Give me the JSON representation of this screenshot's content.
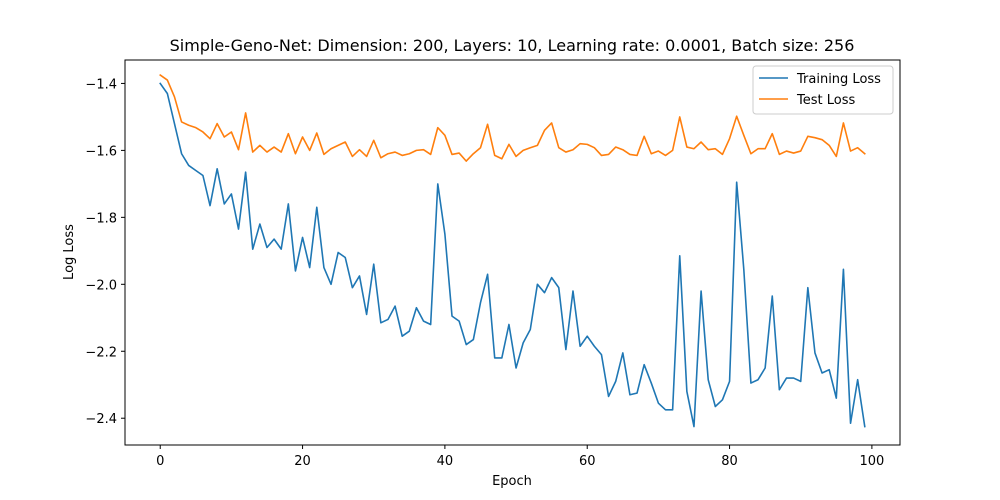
{
  "chart_data": {
    "type": "line",
    "title": "Simple-Geno-Net: Dimension: 200, Layers: 10, Learning rate: 0.0001, Batch size: 256",
    "xlabel": "Epoch",
    "ylabel": "Log Loss",
    "xlim": [
      -4.95,
      103.95
    ],
    "ylim": [
      -2.48,
      -1.33
    ],
    "xticks": [
      0,
      20,
      40,
      60,
      80,
      100
    ],
    "yticks": [
      -2.4,
      -2.2,
      -2.0,
      -1.8,
      -1.6,
      -1.4
    ],
    "xtick_labels": [
      "0",
      "20",
      "40",
      "60",
      "80",
      "100"
    ],
    "ytick_labels": [
      "−2.4",
      "−2.2",
      "−2.0",
      "−1.8",
      "−1.6",
      "−1.4"
    ],
    "grid": false,
    "legend_position": "top-right",
    "x": [
      0,
      1,
      2,
      3,
      4,
      5,
      6,
      7,
      8,
      9,
      10,
      11,
      12,
      13,
      14,
      15,
      16,
      17,
      18,
      19,
      20,
      21,
      22,
      23,
      24,
      25,
      26,
      27,
      28,
      29,
      30,
      31,
      32,
      33,
      34,
      35,
      36,
      37,
      38,
      39,
      40,
      41,
      42,
      43,
      44,
      45,
      46,
      47,
      48,
      49,
      50,
      51,
      52,
      53,
      54,
      55,
      56,
      57,
      58,
      59,
      60,
      61,
      62,
      63,
      64,
      65,
      66,
      67,
      68,
      69,
      70,
      71,
      72,
      73,
      74,
      75,
      76,
      77,
      78,
      79,
      80,
      81,
      82,
      83,
      84,
      85,
      86,
      87,
      88,
      89,
      90,
      91,
      92,
      93,
      94,
      95,
      96,
      97,
      98,
      99
    ],
    "series": [
      {
        "name": "Training Loss",
        "color": "#1f77b4",
        "values": [
          -1.4,
          -1.43,
          -1.52,
          -1.61,
          -1.645,
          -1.66,
          -1.675,
          -1.765,
          -1.655,
          -1.76,
          -1.73,
          -1.835,
          -1.665,
          -1.895,
          -1.82,
          -1.89,
          -1.865,
          -1.895,
          -1.76,
          -1.96,
          -1.86,
          -1.95,
          -1.77,
          -1.95,
          -2.0,
          -1.905,
          -1.92,
          -2.01,
          -1.975,
          -2.09,
          -1.94,
          -2.115,
          -2.105,
          -2.065,
          -2.155,
          -2.14,
          -2.07,
          -2.11,
          -2.12,
          -1.7,
          -1.85,
          -2.095,
          -2.11,
          -2.18,
          -2.165,
          -2.055,
          -1.97,
          -2.22,
          -2.22,
          -2.12,
          -2.25,
          -2.175,
          -2.135,
          -2.0,
          -2.025,
          -1.98,
          -2.01,
          -2.195,
          -2.02,
          -2.185,
          -2.155,
          -2.185,
          -2.21,
          -2.335,
          -2.29,
          -2.205,
          -2.33,
          -2.325,
          -2.24,
          -2.295,
          -2.355,
          -2.375,
          -2.375,
          -1.915,
          -2.32,
          -2.425,
          -2.02,
          -2.285,
          -2.365,
          -2.345,
          -2.29,
          -1.695,
          -1.955,
          -2.295,
          -2.285,
          -2.25,
          -2.035,
          -2.315,
          -2.28,
          -2.28,
          -2.29,
          -2.01,
          -2.205,
          -2.265,
          -2.255,
          -2.34,
          -1.955,
          -2.415,
          -2.285,
          -2.425
        ]
      },
      {
        "name": "Test Loss",
        "color": "#ff7f0e",
        "values": [
          -1.375,
          -1.39,
          -1.44,
          -1.515,
          -1.525,
          -1.532,
          -1.545,
          -1.565,
          -1.52,
          -1.56,
          -1.545,
          -1.598,
          -1.488,
          -1.605,
          -1.585,
          -1.605,
          -1.59,
          -1.605,
          -1.55,
          -1.61,
          -1.56,
          -1.6,
          -1.548,
          -1.612,
          -1.595,
          -1.585,
          -1.575,
          -1.618,
          -1.598,
          -1.618,
          -1.57,
          -1.622,
          -1.61,
          -1.605,
          -1.615,
          -1.61,
          -1.6,
          -1.598,
          -1.612,
          -1.532,
          -1.555,
          -1.612,
          -1.608,
          -1.632,
          -1.61,
          -1.592,
          -1.522,
          -1.615,
          -1.625,
          -1.582,
          -1.618,
          -1.6,
          -1.592,
          -1.585,
          -1.54,
          -1.518,
          -1.592,
          -1.605,
          -1.598,
          -1.58,
          -1.582,
          -1.592,
          -1.615,
          -1.612,
          -1.59,
          -1.598,
          -1.612,
          -1.615,
          -1.558,
          -1.61,
          -1.602,
          -1.615,
          -1.6,
          -1.5,
          -1.59,
          -1.595,
          -1.575,
          -1.598,
          -1.595,
          -1.612,
          -1.565,
          -1.498,
          -1.555,
          -1.61,
          -1.595,
          -1.595,
          -1.55,
          -1.612,
          -1.602,
          -1.608,
          -1.602,
          -1.558,
          -1.562,
          -1.568,
          -1.585,
          -1.618,
          -1.518,
          -1.602,
          -1.592,
          -1.61
        ]
      }
    ]
  }
}
